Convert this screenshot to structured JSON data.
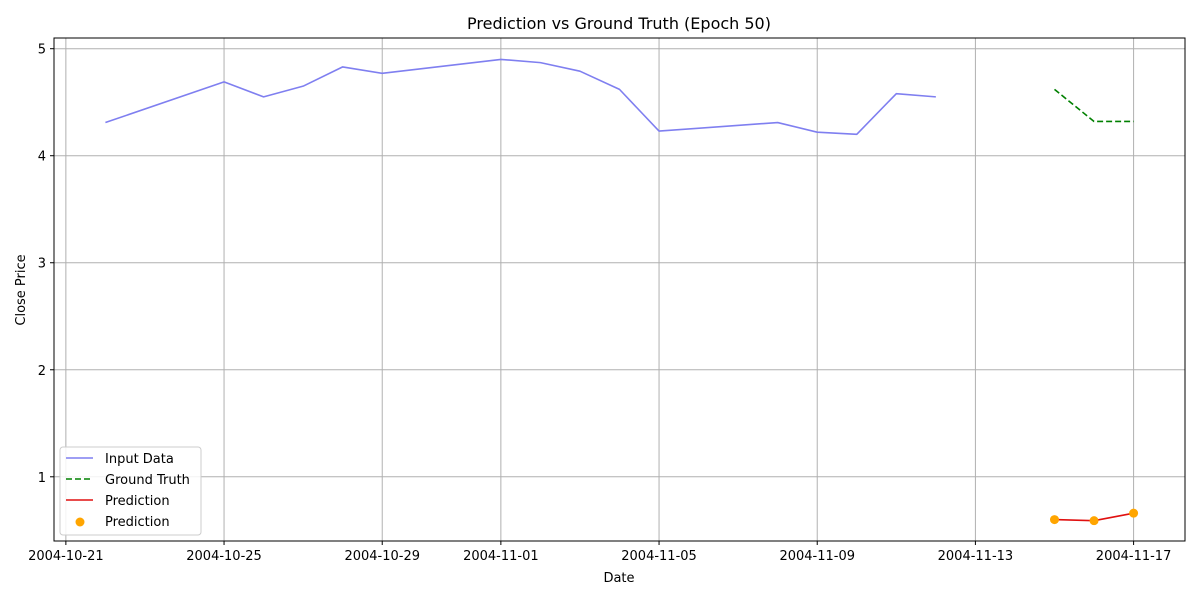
{
  "chart_data": {
    "type": "line",
    "title": "Prediction vs Ground Truth (Epoch 50)",
    "xlabel": "Date",
    "ylabel": "Close Price",
    "xlim": [
      "2004-10-21",
      "2004-11-17"
    ],
    "ylim": [
      0.4,
      5.1
    ],
    "x_ticks": [
      "2004-10-21",
      "2004-10-25",
      "2004-10-29",
      "2004-11-01",
      "2004-11-05",
      "2004-11-09",
      "2004-11-13",
      "2004-11-17"
    ],
    "y_ticks": [
      1,
      2,
      3,
      4,
      5
    ],
    "grid": true,
    "legend_position": "lower-left",
    "series": [
      {
        "name": "Input Data",
        "kind": "line",
        "color": "#7f7ff0",
        "dash": "solid",
        "points": [
          [
            "2004-10-22",
            4.31
          ],
          [
            "2004-10-25",
            4.69
          ],
          [
            "2004-10-26",
            4.55
          ],
          [
            "2004-10-27",
            4.65
          ],
          [
            "2004-10-28",
            4.83
          ],
          [
            "2004-10-29",
            4.77
          ],
          [
            "2004-11-01",
            4.9
          ],
          [
            "2004-11-02",
            4.87
          ],
          [
            "2004-11-03",
            4.79
          ],
          [
            "2004-11-04",
            4.62
          ],
          [
            "2004-11-05",
            4.23
          ],
          [
            "2004-11-08",
            4.31
          ],
          [
            "2004-11-09",
            4.22
          ],
          [
            "2004-11-10",
            4.2
          ],
          [
            "2004-11-11",
            4.58
          ],
          [
            "2004-11-12",
            4.55
          ]
        ]
      },
      {
        "name": "Ground Truth",
        "kind": "line",
        "color": "#008000",
        "dash": "dashed",
        "points": [
          [
            "2004-11-15",
            4.62
          ],
          [
            "2004-11-16",
            4.32
          ],
          [
            "2004-11-17",
            4.32
          ]
        ]
      },
      {
        "name": "Prediction",
        "kind": "line",
        "color": "#e01010",
        "dash": "solid",
        "points": [
          [
            "2004-11-15",
            0.6
          ],
          [
            "2004-11-16",
            0.59
          ],
          [
            "2004-11-17",
            0.66
          ]
        ]
      },
      {
        "name": "Prediction",
        "kind": "scatter",
        "color": "#ffa500",
        "points": [
          [
            "2004-11-15",
            0.6
          ],
          [
            "2004-11-16",
            0.59
          ],
          [
            "2004-11-17",
            0.66
          ]
        ]
      }
    ]
  }
}
